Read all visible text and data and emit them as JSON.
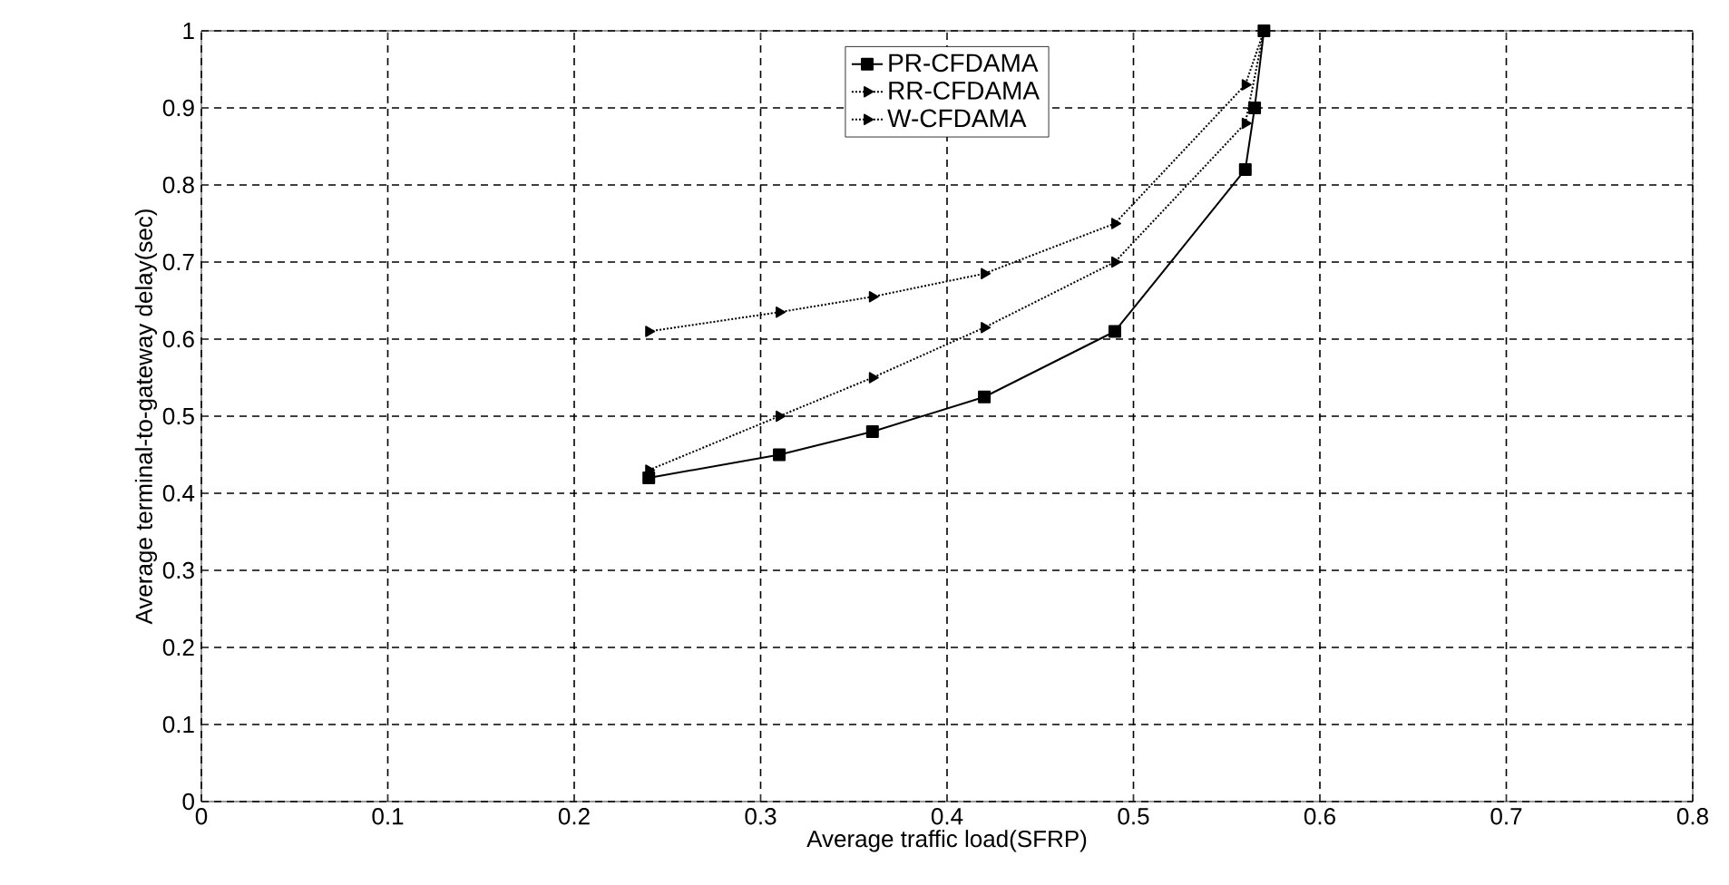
{
  "chart_data": {
    "type": "line",
    "xlabel": "Average traffic load(SFRP)",
    "ylabel": "Average terminal-to-gateway delay(sec)",
    "xlim": [
      0,
      0.8
    ],
    "ylim": [
      0,
      1
    ],
    "xticks": [
      0,
      0.1,
      0.2,
      0.3,
      0.4,
      0.5,
      0.6,
      0.7,
      0.8
    ],
    "yticks": [
      0,
      0.1,
      0.2,
      0.3,
      0.4,
      0.5,
      0.6,
      0.7,
      0.8,
      0.9,
      1
    ],
    "grid": true,
    "legend": "top",
    "series": [
      {
        "name": "PR-CFDAMA",
        "color": "#000000",
        "marker": "square",
        "line_style": "solid",
        "x": [
          0.24,
          0.31,
          0.36,
          0.42,
          0.49,
          0.56,
          0.565,
          0.57
        ],
        "values": [
          0.42,
          0.45,
          0.48,
          0.525,
          0.61,
          0.82,
          0.9,
          1.0
        ]
      },
      {
        "name": "RR-CFDAMA",
        "color": "#000000",
        "marker": "triangle",
        "line_style": "dotted",
        "x": [
          0.24,
          0.31,
          0.36,
          0.42,
          0.49,
          0.56,
          0.57
        ],
        "values": [
          0.43,
          0.5,
          0.55,
          0.615,
          0.7,
          0.88,
          1.0
        ]
      },
      {
        "name": "W-CFDAMA",
        "color": "#000000",
        "marker": "triangle",
        "line_style": "dotted",
        "x": [
          0.24,
          0.31,
          0.36,
          0.42,
          0.49,
          0.56,
          0.57
        ],
        "values": [
          0.61,
          0.635,
          0.655,
          0.685,
          0.75,
          0.93,
          1.0
        ]
      }
    ]
  }
}
